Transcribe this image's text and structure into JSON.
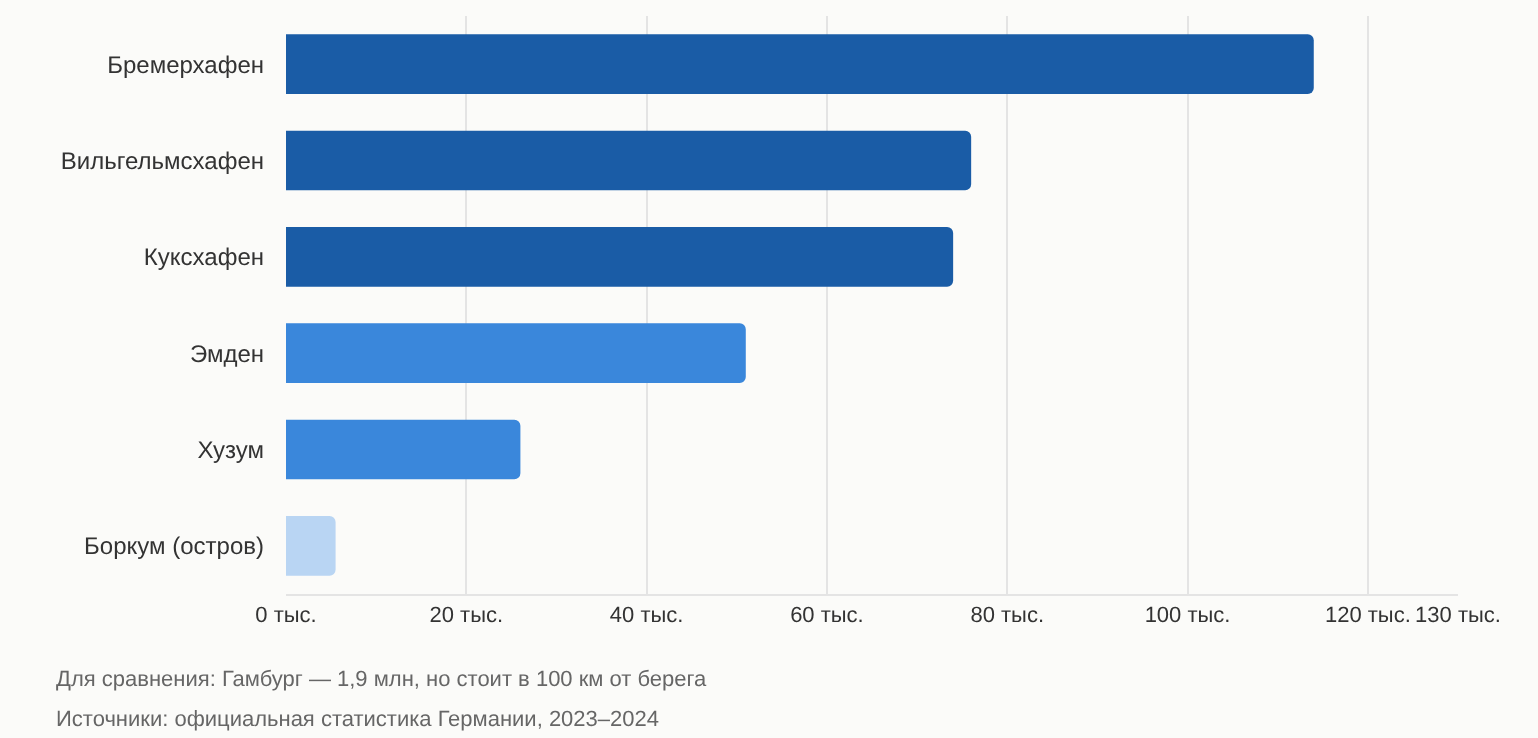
{
  "chart_data": {
    "type": "bar",
    "orientation": "horizontal",
    "categories": [
      "Бремерхафен",
      "Вильгельмсхафен",
      "Куксхафен",
      "Эмден",
      "Хузум",
      "Боркум (остров)"
    ],
    "values": [
      114,
      76,
      74,
      51,
      26,
      5.5
    ],
    "colors": [
      "#1a5ca6",
      "#1a5ca6",
      "#1a5ca6",
      "#3a87db",
      "#3a87db",
      "#b9d5f3"
    ],
    "xlim": [
      0,
      130
    ],
    "xticks": [
      {
        "value": 0,
        "label": "0 тыс."
      },
      {
        "value": 20,
        "label": "20 тыс."
      },
      {
        "value": 40,
        "label": "40 тыс."
      },
      {
        "value": 60,
        "label": "60 тыс."
      },
      {
        "value": 80,
        "label": "80 тыс."
      },
      {
        "value": 100,
        "label": "100 тыс."
      },
      {
        "value": 120,
        "label": "120 тыс."
      },
      {
        "value": 130,
        "label": "130 тыс."
      }
    ],
    "grid": "x",
    "annotations": [
      "Для сравнения: Гамбург — 1,9 млн, но стоит в 100 км от берега",
      "Источники: официальная статистика Германии, 2023–2024"
    ]
  }
}
